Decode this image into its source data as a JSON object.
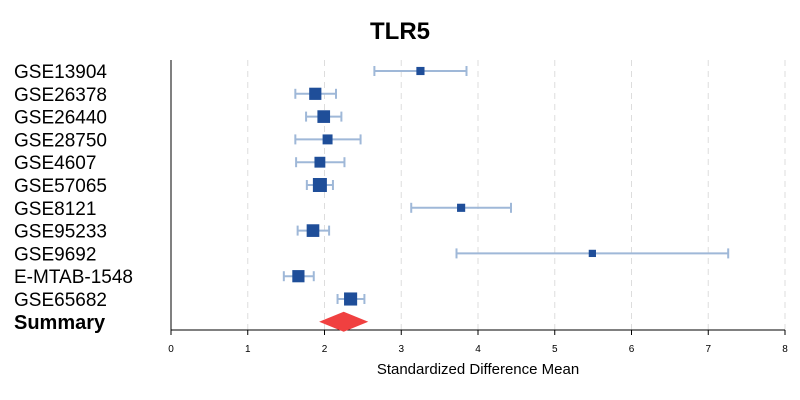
{
  "chart_data": {
    "type": "forest",
    "title": "TLR5",
    "xlabel": "Standardized Difference Mean",
    "xlim": [
      0,
      8
    ],
    "xticks": [
      "0",
      "1",
      "2",
      "3",
      "4",
      "5",
      "6",
      "7",
      "8"
    ],
    "grid": true,
    "studies": [
      {
        "label": "GSE13904",
        "mean": 3.25,
        "lower": 2.65,
        "upper": 3.85,
        "weight": 0.35
      },
      {
        "label": "GSE26378",
        "mean": 1.88,
        "lower": 1.62,
        "upper": 2.15,
        "weight": 0.8
      },
      {
        "label": "GSE26440",
        "mean": 1.99,
        "lower": 1.76,
        "upper": 2.22,
        "weight": 0.85
      },
      {
        "label": "GSE28750",
        "mean": 2.04,
        "lower": 1.62,
        "upper": 2.47,
        "weight": 0.55
      },
      {
        "label": "GSE4607",
        "mean": 1.94,
        "lower": 1.63,
        "upper": 2.26,
        "weight": 0.65
      },
      {
        "label": "GSE57065",
        "mean": 1.94,
        "lower": 1.77,
        "upper": 2.11,
        "weight": 1.0
      },
      {
        "label": "GSE8121",
        "mean": 3.78,
        "lower": 3.13,
        "upper": 4.43,
        "weight": 0.35
      },
      {
        "label": "GSE95233",
        "mean": 1.85,
        "lower": 1.65,
        "upper": 2.06,
        "weight": 0.85
      },
      {
        "label": "GSE9692",
        "mean": 5.49,
        "lower": 3.72,
        "upper": 7.26,
        "weight": 0.25
      },
      {
        "label": "E-MTAB-1548",
        "mean": 1.66,
        "lower": 1.47,
        "upper": 1.86,
        "weight": 0.8
      },
      {
        "label": "GSE65682",
        "mean": 2.34,
        "lower": 2.17,
        "upper": 2.52,
        "weight": 0.9
      }
    ],
    "summary": {
      "label": "Summary",
      "mean": 2.25,
      "lower": 1.93,
      "upper": 2.57
    },
    "colors": {
      "point": "#1f4e99",
      "ci": "#9fb8d8",
      "summary": "#f04040",
      "grid": "#dddddd"
    }
  }
}
